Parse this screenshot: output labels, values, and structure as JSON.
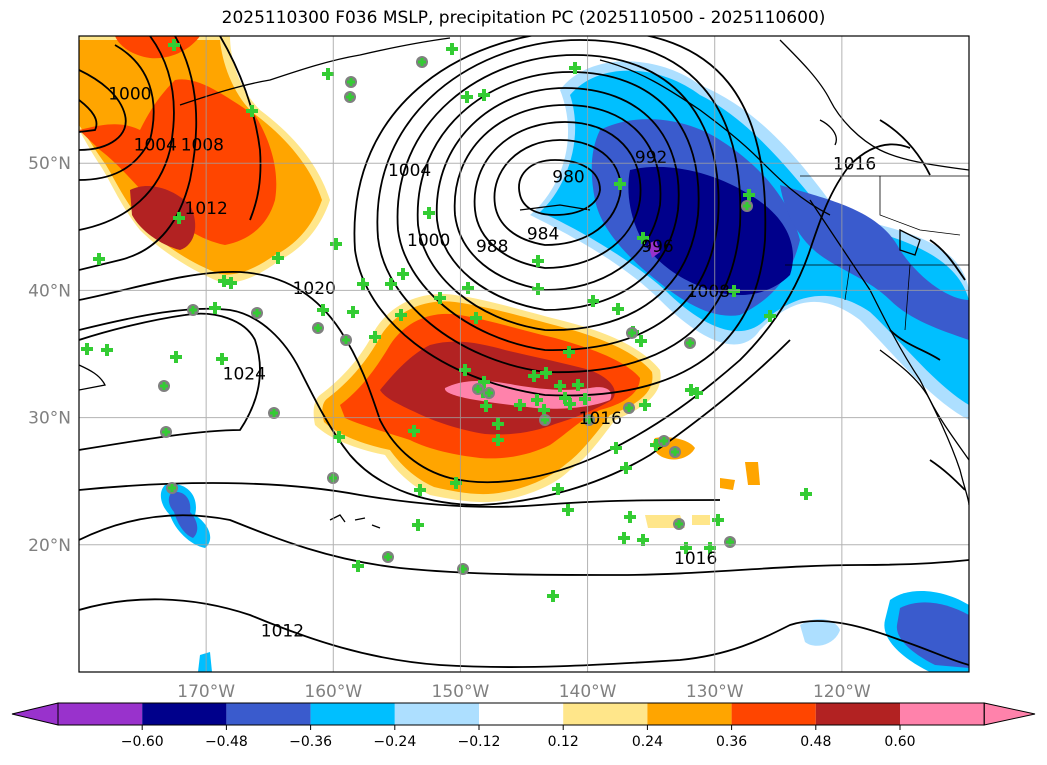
{
  "title": "2025110300 F036 MSLP, precipitation PC (2025110500 - 2025110600)",
  "map": {
    "lon_range": [
      -180,
      -110
    ],
    "lat_range": [
      10,
      60
    ],
    "lat_ticks": [
      {
        "value": 20,
        "label": "20°N"
      },
      {
        "value": 30,
        "label": "30°N"
      },
      {
        "value": 40,
        "label": "40°N"
      },
      {
        "value": 50,
        "label": "50°N"
      }
    ],
    "lon_ticks": [
      {
        "value": -170,
        "label": "170°W"
      },
      {
        "value": -160,
        "label": "160°W"
      },
      {
        "value": -150,
        "label": "150°W"
      },
      {
        "value": -140,
        "label": "140°W"
      },
      {
        "value": -130,
        "label": "130°W"
      },
      {
        "value": -120,
        "label": "120°W"
      }
    ],
    "grid": true,
    "isobar_labels": [
      {
        "text": "1000",
        "lon": -176,
        "lat": 55
      },
      {
        "text": "1004",
        "lon": -174,
        "lat": 51
      },
      {
        "text": "1008",
        "lon": -170.3,
        "lat": 51
      },
      {
        "text": "1012",
        "lon": -170,
        "lat": 46
      },
      {
        "text": "1004",
        "lon": -154,
        "lat": 49
      },
      {
        "text": "1000",
        "lon": -152.5,
        "lat": 43.5
      },
      {
        "text": "988",
        "lon": -147.5,
        "lat": 43
      },
      {
        "text": "984",
        "lon": -143.5,
        "lat": 44
      },
      {
        "text": "980",
        "lon": -141.5,
        "lat": 48.5
      },
      {
        "text": "992",
        "lon": -135,
        "lat": 50
      },
      {
        "text": "996",
        "lon": -134.5,
        "lat": 43
      },
      {
        "text": "1008",
        "lon": -130.5,
        "lat": 39.5
      },
      {
        "text": "1016",
        "lon": -119,
        "lat": 49.5
      },
      {
        "text": "1020",
        "lon": -161.5,
        "lat": 39.7
      },
      {
        "text": "1024",
        "lon": -167,
        "lat": 33
      },
      {
        "text": "1016",
        "lon": -139,
        "lat": 29.5
      },
      {
        "text": "1016",
        "lon": -131.5,
        "lat": 18.5
      },
      {
        "text": "1012",
        "lon": -164,
        "lat": 12.8
      }
    ]
  },
  "colorbar": {
    "colors": [
      "#9932CC",
      "#00008B",
      "#3A5BCD",
      "#00BFFF",
      "#ADDFFF",
      "#FFFFFF",
      "#FFE68A",
      "#FFA500",
      "#FF4500",
      "#B22222",
      "#FF82AB"
    ],
    "tick_labels": [
      "−0.60",
      "−0.48",
      "−0.36",
      "−0.24",
      "−0.12",
      "0.12",
      "0.24",
      "0.36",
      "0.48",
      "0.60"
    ]
  },
  "colors": {
    "positive_1": "#FFE68A",
    "positive_2": "#FFA500",
    "positive_3": "#FF4500",
    "positive_4": "#B22222",
    "positive_5": "#FF82AB",
    "negative_1": "#ADDFFF",
    "negative_2": "#00BFFF",
    "negative_3": "#3A5BCD",
    "negative_4": "#00008B",
    "negative_5": "#9932CC",
    "station_plus": "#33CC33",
    "station_circle": "#808080"
  }
}
